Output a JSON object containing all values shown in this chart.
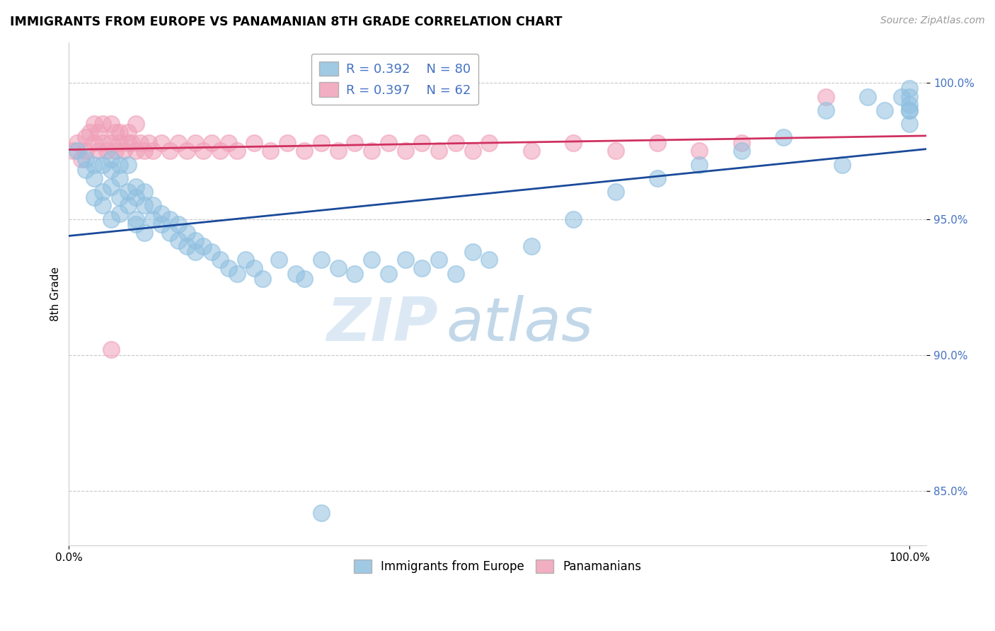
{
  "title": "IMMIGRANTS FROM EUROPE VS PANAMANIAN 8TH GRADE CORRELATION CHART",
  "source_text": "Source: ZipAtlas.com",
  "ylabel": "8th Grade",
  "blue_color": "#90c0e0",
  "pink_color": "#f0a0b8",
  "blue_line_color": "#1a4a9a",
  "pink_line_color": "#d03060",
  "blue_label": "Immigrants from Europe",
  "pink_label": "Panamanians",
  "legend_R_blue": "R = 0.392",
  "legend_N_blue": "N = 80",
  "legend_R_pink": "R = 0.397",
  "legend_N_pink": "N = 62",
  "watermark_zip": "ZIP",
  "watermark_atlas": "atlas",
  "xlim": [
    0.0,
    102.0
  ],
  "ylim": [
    83.0,
    101.5
  ],
  "yticks": [
    85.0,
    90.0,
    95.0,
    100.0
  ],
  "ytick_labels": [
    "85.0%",
    "90.0%",
    "95.0%",
    "100.0%"
  ],
  "blue_scatter_x": [
    1,
    2,
    2,
    3,
    3,
    3,
    4,
    4,
    4,
    5,
    5,
    5,
    5,
    6,
    6,
    6,
    6,
    7,
    7,
    7,
    8,
    8,
    8,
    8,
    9,
    9,
    9,
    10,
    10,
    11,
    11,
    12,
    12,
    13,
    13,
    14,
    14,
    15,
    15,
    16,
    17,
    18,
    19,
    20,
    21,
    22,
    23,
    25,
    27,
    28,
    30,
    32,
    34,
    36,
    38,
    40,
    42,
    44,
    46,
    48,
    50,
    55,
    60,
    65,
    70,
    75,
    80,
    85,
    90,
    92,
    95,
    97,
    99,
    100,
    100,
    100,
    100,
    100,
    100,
    30
  ],
  "blue_scatter_y": [
    97.5,
    96.8,
    97.2,
    95.8,
    96.5,
    97.0,
    95.5,
    96.0,
    97.0,
    96.2,
    96.8,
    97.2,
    95.0,
    95.8,
    96.5,
    97.0,
    95.2,
    95.5,
    96.0,
    97.0,
    95.0,
    95.8,
    96.2,
    94.8,
    95.5,
    96.0,
    94.5,
    95.0,
    95.5,
    94.8,
    95.2,
    94.5,
    95.0,
    94.2,
    94.8,
    94.0,
    94.5,
    93.8,
    94.2,
    94.0,
    93.8,
    93.5,
    93.2,
    93.0,
    93.5,
    93.2,
    92.8,
    93.5,
    93.0,
    92.8,
    93.5,
    93.2,
    93.0,
    93.5,
    93.0,
    93.5,
    93.2,
    93.5,
    93.0,
    93.8,
    93.5,
    94.0,
    95.0,
    96.0,
    96.5,
    97.0,
    97.5,
    98.0,
    99.0,
    97.0,
    99.5,
    99.0,
    99.5,
    99.5,
    99.8,
    99.2,
    99.0,
    98.5,
    99.0,
    84.2
  ],
  "pink_scatter_x": [
    0.5,
    1,
    1.5,
    2,
    2,
    2.5,
    3,
    3,
    3.5,
    3.5,
    4,
    4,
    4.5,
    5,
    5,
    5.5,
    5.5,
    6,
    6,
    6.5,
    7,
    7,
    7.5,
    8,
    8,
    8.5,
    9,
    9.5,
    10,
    11,
    12,
    13,
    14,
    15,
    16,
    17,
    18,
    19,
    20,
    22,
    24,
    26,
    28,
    30,
    32,
    34,
    36,
    38,
    40,
    42,
    44,
    46,
    48,
    50,
    55,
    60,
    65,
    70,
    75,
    80,
    90,
    5
  ],
  "pink_scatter_y": [
    97.5,
    97.8,
    97.2,
    98.0,
    97.5,
    98.2,
    97.8,
    98.5,
    97.5,
    98.2,
    97.8,
    98.5,
    97.5,
    97.8,
    98.5,
    97.5,
    98.2,
    97.8,
    98.2,
    97.5,
    97.8,
    98.2,
    97.8,
    97.5,
    98.5,
    97.8,
    97.5,
    97.8,
    97.5,
    97.8,
    97.5,
    97.8,
    97.5,
    97.8,
    97.5,
    97.8,
    97.5,
    97.8,
    97.5,
    97.8,
    97.5,
    97.8,
    97.5,
    97.8,
    97.5,
    97.8,
    97.5,
    97.8,
    97.5,
    97.8,
    97.5,
    97.8,
    97.5,
    97.8,
    97.5,
    97.8,
    97.5,
    97.8,
    97.5,
    97.8,
    99.5,
    90.2
  ]
}
